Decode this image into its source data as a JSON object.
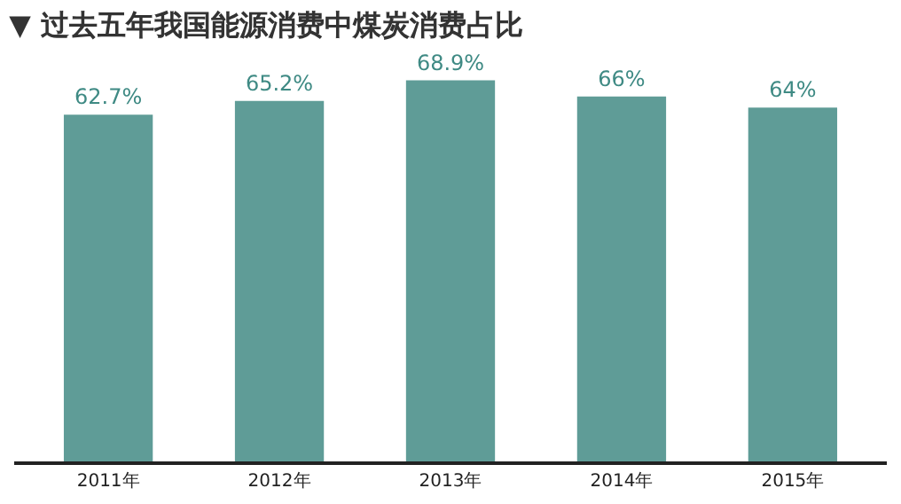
{
  "chart_data": {
    "type": "bar",
    "title": "▼ 过去五年我国能源消费中煤炭消费占比",
    "categories": [
      "2011年",
      "2012年",
      "2013年",
      "2014年",
      "2015年"
    ],
    "values": [
      62.7,
      65.2,
      68.9,
      66,
      64
    ],
    "value_labels": [
      "62.7%",
      "65.2%",
      "68.9%",
      "66%",
      "64%"
    ],
    "color": "#5f9c97"
  }
}
